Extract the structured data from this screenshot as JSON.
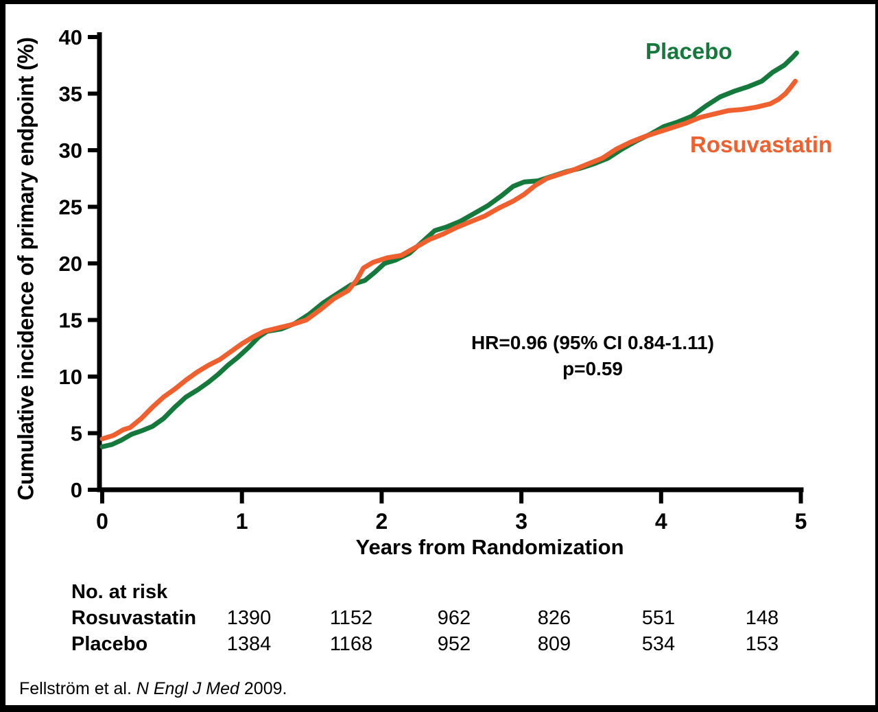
{
  "figure": {
    "y_axis_title": "Cumulative incidence of primary endpoint (%)",
    "x_axis_title": "Years from Randomization",
    "legend": {
      "placebo": "Placebo",
      "rosuvastatin": "Rosuvastatin"
    },
    "annotation": {
      "line1": "HR=0.96 (95% CI 0.84-1.11)",
      "line2": "p=0.59"
    },
    "citation": {
      "prefix": "Fellström et al. ",
      "journal": "N Engl J Med",
      "suffix": " 2009."
    },
    "colors": {
      "placebo": "#15793c",
      "rosuvastatin": "#f0602e",
      "axis": "#000000"
    }
  },
  "chart_data": {
    "type": "line",
    "title": "",
    "xlabel": "Years from Randomization",
    "ylabel": "Cumulative incidence of primary endpoint (%)",
    "xlim": [
      0,
      5
    ],
    "ylim": [
      0,
      40
    ],
    "x_ticks": [
      0,
      1,
      2,
      3,
      4,
      5
    ],
    "y_ticks": [
      0,
      5,
      10,
      15,
      20,
      25,
      30,
      35,
      40
    ],
    "grid": false,
    "legend_position": "inline-labels",
    "annotations": [
      "HR=0.96 (95% CI 0.84-1.11)",
      "p=0.59"
    ],
    "series": [
      {
        "name": "Placebo",
        "color": "#15793c",
        "points": [
          [
            0.0,
            3.8
          ],
          [
            0.07,
            4.0
          ],
          [
            0.14,
            4.4
          ],
          [
            0.21,
            4.9
          ],
          [
            0.28,
            5.2
          ],
          [
            0.36,
            5.6
          ],
          [
            0.44,
            6.3
          ],
          [
            0.52,
            7.3
          ],
          [
            0.6,
            8.2
          ],
          [
            0.68,
            8.8
          ],
          [
            0.76,
            9.5
          ],
          [
            0.83,
            10.2
          ],
          [
            0.9,
            11.0
          ],
          [
            0.97,
            11.7
          ],
          [
            1.05,
            12.6
          ],
          [
            1.12,
            13.5
          ],
          [
            1.18,
            14.0
          ],
          [
            1.28,
            14.2
          ],
          [
            1.38,
            14.7
          ],
          [
            1.48,
            15.5
          ],
          [
            1.58,
            16.5
          ],
          [
            1.68,
            17.3
          ],
          [
            1.78,
            18.1
          ],
          [
            1.88,
            18.5
          ],
          [
            1.95,
            19.2
          ],
          [
            2.02,
            20.0
          ],
          [
            2.1,
            20.3
          ],
          [
            2.2,
            20.9
          ],
          [
            2.3,
            22.0
          ],
          [
            2.38,
            22.9
          ],
          [
            2.46,
            23.2
          ],
          [
            2.56,
            23.7
          ],
          [
            2.66,
            24.4
          ],
          [
            2.76,
            25.1
          ],
          [
            2.86,
            26.0
          ],
          [
            2.94,
            26.8
          ],
          [
            3.02,
            27.2
          ],
          [
            3.12,
            27.3
          ],
          [
            3.22,
            27.7
          ],
          [
            3.32,
            28.1
          ],
          [
            3.42,
            28.4
          ],
          [
            3.52,
            28.8
          ],
          [
            3.62,
            29.3
          ],
          [
            3.72,
            30.1
          ],
          [
            3.82,
            30.8
          ],
          [
            3.92,
            31.4
          ],
          [
            4.02,
            32.1
          ],
          [
            4.12,
            32.5
          ],
          [
            4.22,
            33.0
          ],
          [
            4.32,
            33.9
          ],
          [
            4.42,
            34.7
          ],
          [
            4.52,
            35.2
          ],
          [
            4.62,
            35.6
          ],
          [
            4.72,
            36.1
          ],
          [
            4.8,
            36.9
          ],
          [
            4.88,
            37.5
          ],
          [
            4.94,
            38.2
          ],
          [
            4.97,
            38.6
          ]
        ]
      },
      {
        "name": "Rosuvastatin",
        "color": "#f0602e",
        "points": [
          [
            0.0,
            4.5
          ],
          [
            0.08,
            4.8
          ],
          [
            0.15,
            5.3
          ],
          [
            0.2,
            5.5
          ],
          [
            0.28,
            6.3
          ],
          [
            0.36,
            7.3
          ],
          [
            0.44,
            8.2
          ],
          [
            0.52,
            8.9
          ],
          [
            0.6,
            9.7
          ],
          [
            0.68,
            10.4
          ],
          [
            0.76,
            11.0
          ],
          [
            0.84,
            11.5
          ],
          [
            0.92,
            12.2
          ],
          [
            1.0,
            12.9
          ],
          [
            1.08,
            13.5
          ],
          [
            1.16,
            14.0
          ],
          [
            1.26,
            14.3
          ],
          [
            1.36,
            14.6
          ],
          [
            1.46,
            15.0
          ],
          [
            1.56,
            15.9
          ],
          [
            1.66,
            16.9
          ],
          [
            1.76,
            17.6
          ],
          [
            1.82,
            18.5
          ],
          [
            1.87,
            19.6
          ],
          [
            1.94,
            20.1
          ],
          [
            2.04,
            20.5
          ],
          [
            2.14,
            20.7
          ],
          [
            2.24,
            21.4
          ],
          [
            2.34,
            22.1
          ],
          [
            2.44,
            22.6
          ],
          [
            2.54,
            23.2
          ],
          [
            2.64,
            23.7
          ],
          [
            2.74,
            24.2
          ],
          [
            2.84,
            24.9
          ],
          [
            2.94,
            25.5
          ],
          [
            3.02,
            26.1
          ],
          [
            3.1,
            26.9
          ],
          [
            3.18,
            27.5
          ],
          [
            3.28,
            27.9
          ],
          [
            3.38,
            28.3
          ],
          [
            3.48,
            28.8
          ],
          [
            3.58,
            29.3
          ],
          [
            3.68,
            30.1
          ],
          [
            3.78,
            30.7
          ],
          [
            3.88,
            31.2
          ],
          [
            3.98,
            31.6
          ],
          [
            4.08,
            32.0
          ],
          [
            4.18,
            32.4
          ],
          [
            4.28,
            32.9
          ],
          [
            4.38,
            33.2
          ],
          [
            4.48,
            33.5
          ],
          [
            4.58,
            33.6
          ],
          [
            4.68,
            33.8
          ],
          [
            4.78,
            34.1
          ],
          [
            4.84,
            34.5
          ],
          [
            4.89,
            35.0
          ],
          [
            4.93,
            35.6
          ],
          [
            4.96,
            36.1
          ]
        ]
      }
    ],
    "at_risk": {
      "header": "No. at risk",
      "rows": [
        {
          "label": "Rosuvastatin",
          "values": [
            "1390",
            "1152",
            "962",
            "826",
            "551",
            "148"
          ]
        },
        {
          "label": "Placebo",
          "values": [
            "1384",
            "1168",
            "952",
            "809",
            "534",
            "153"
          ]
        }
      ]
    }
  }
}
